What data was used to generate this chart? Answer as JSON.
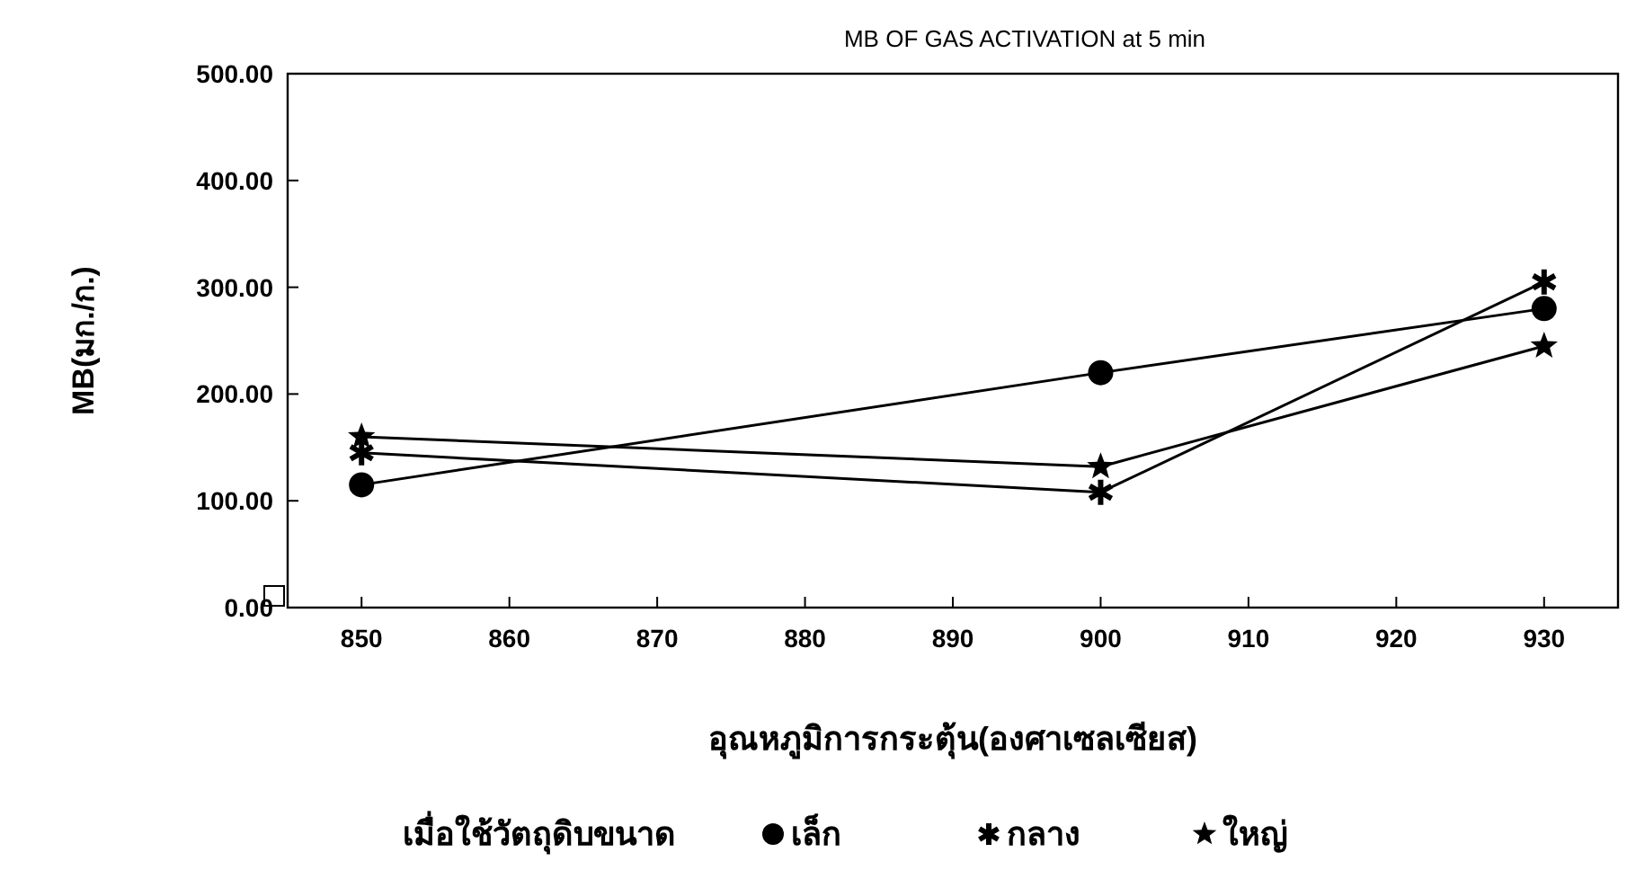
{
  "chart_data": {
    "type": "line",
    "title": "MB OF GAS ACTIVATION at 5 min",
    "xlabel": "อุณหภูมิการกระตุ้น(องศาเซลเซียส)",
    "ylabel": "MB(มก./ก.)",
    "legend_title": "เมื่อใช้วัตถุดิบขนาด",
    "legend": "bottom",
    "x": [
      850,
      900,
      930
    ],
    "series": [
      {
        "name": "เล็ก",
        "color": "#000000",
        "marker": "circle",
        "values": [
          115,
          220,
          280
        ]
      },
      {
        "name": "กลาง",
        "color": "#000000",
        "marker": "cross",
        "values": [
          145,
          108,
          305
        ]
      },
      {
        "name": "ใหญ่",
        "color": "#000000",
        "marker": "star",
        "values": [
          160,
          132,
          245
        ]
      }
    ],
    "xlim": [
      845,
      935
    ],
    "xticks": [
      850,
      860,
      870,
      880,
      890,
      900,
      910,
      920,
      930
    ],
    "ylim": [
      0,
      500
    ],
    "yticks": [
      {
        "value": 0,
        "label": "0.00"
      },
      {
        "value": 100,
        "label": "100.00"
      },
      {
        "value": 200,
        "label": "200.00"
      },
      {
        "value": 300,
        "label": "300.00"
      },
      {
        "value": 400,
        "label": "400.00"
      },
      {
        "value": 500,
        "label": "500.00"
      }
    ],
    "grid": false
  }
}
